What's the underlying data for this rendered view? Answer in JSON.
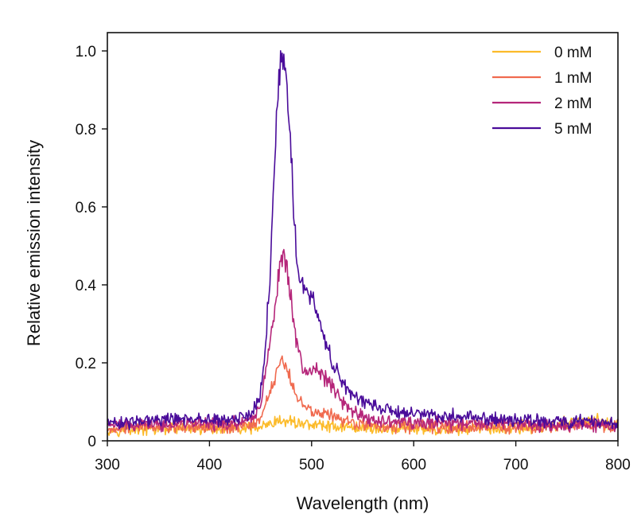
{
  "chart_data": {
    "type": "line",
    "xlabel": "Wavelength (nm)",
    "ylabel": "Relative emission intensity",
    "xlim": [
      300,
      800
    ],
    "ylim": [
      0,
      1.05
    ],
    "x_ticks": [
      300,
      400,
      500,
      600,
      700,
      800
    ],
    "x_tick_labels": [
      "300",
      "400",
      "500",
      "600",
      "700",
      "800"
    ],
    "y_ticks": [
      0,
      0.2,
      0.4,
      0.6,
      0.8,
      1.0
    ],
    "y_tick_labels": [
      "0",
      "0.2",
      "0.4",
      "0.6",
      "0.8",
      "1.0"
    ],
    "grid": false,
    "legend_position": "top-right",
    "series": [
      {
        "name": "0 mM",
        "color": "#fcbb2a",
        "x": [
          300,
          320,
          340,
          360,
          380,
          400,
          420,
          440,
          450,
          460,
          465,
          470,
          475,
          480,
          485,
          490,
          500,
          510,
          520,
          540,
          560,
          580,
          600,
          620,
          640,
          660,
          680,
          700,
          720,
          740,
          760,
          780,
          800
        ],
        "y": [
          0.03,
          0.03,
          0.03,
          0.03,
          0.03,
          0.03,
          0.03,
          0.03,
          0.035,
          0.04,
          0.045,
          0.05,
          0.05,
          0.05,
          0.048,
          0.045,
          0.042,
          0.04,
          0.038,
          0.035,
          0.033,
          0.032,
          0.03,
          0.03,
          0.03,
          0.03,
          0.03,
          0.035,
          0.035,
          0.04,
          0.05,
          0.05,
          0.04
        ]
      },
      {
        "name": "1 mM",
        "color": "#f06a4f",
        "x": [
          300,
          320,
          340,
          360,
          380,
          400,
          420,
          440,
          450,
          455,
          460,
          465,
          470,
          475,
          480,
          485,
          490,
          495,
          500,
          510,
          520,
          530,
          540,
          560,
          580,
          600,
          620,
          640,
          660,
          680,
          700,
          720,
          740,
          760,
          780,
          800
        ],
        "y": [
          0.03,
          0.035,
          0.035,
          0.035,
          0.035,
          0.035,
          0.035,
          0.04,
          0.06,
          0.09,
          0.13,
          0.17,
          0.2,
          0.19,
          0.15,
          0.12,
          0.1,
          0.085,
          0.08,
          0.075,
          0.065,
          0.055,
          0.045,
          0.04,
          0.035,
          0.035,
          0.035,
          0.035,
          0.035,
          0.035,
          0.035,
          0.035,
          0.035,
          0.04,
          0.04,
          0.04
        ]
      },
      {
        "name": "2 mM",
        "color": "#b5267a",
        "x": [
          300,
          320,
          340,
          360,
          380,
          400,
          420,
          440,
          450,
          455,
          460,
          465,
          470,
          475,
          480,
          485,
          490,
          495,
          500,
          505,
          510,
          520,
          530,
          540,
          550,
          560,
          580,
          600,
          620,
          640,
          660,
          680,
          700,
          720,
          740,
          760,
          780,
          800
        ],
        "y": [
          0.04,
          0.04,
          0.04,
          0.04,
          0.045,
          0.045,
          0.045,
          0.05,
          0.09,
          0.17,
          0.27,
          0.38,
          0.47,
          0.46,
          0.36,
          0.26,
          0.2,
          0.18,
          0.18,
          0.18,
          0.17,
          0.14,
          0.1,
          0.075,
          0.06,
          0.055,
          0.05,
          0.045,
          0.045,
          0.045,
          0.045,
          0.045,
          0.045,
          0.04,
          0.04,
          0.04,
          0.04,
          0.04
        ]
      },
      {
        "name": "5 mM",
        "color": "#4a0c9a",
        "x": [
          300,
          320,
          340,
          360,
          380,
          400,
          420,
          440,
          450,
          455,
          460,
          463,
          466,
          470,
          473,
          476,
          480,
          483,
          486,
          490,
          495,
          500,
          505,
          510,
          515,
          520,
          530,
          540,
          550,
          560,
          570,
          580,
          600,
          620,
          640,
          660,
          680,
          700,
          720,
          740,
          760,
          780,
          800
        ],
        "y": [
          0.045,
          0.045,
          0.05,
          0.055,
          0.055,
          0.055,
          0.055,
          0.06,
          0.12,
          0.25,
          0.45,
          0.65,
          0.85,
          0.98,
          0.97,
          0.9,
          0.72,
          0.56,
          0.45,
          0.39,
          0.38,
          0.37,
          0.34,
          0.29,
          0.24,
          0.2,
          0.15,
          0.12,
          0.1,
          0.09,
          0.08,
          0.075,
          0.07,
          0.065,
          0.065,
          0.06,
          0.055,
          0.055,
          0.05,
          0.05,
          0.05,
          0.05,
          0.05
        ]
      }
    ]
  }
}
